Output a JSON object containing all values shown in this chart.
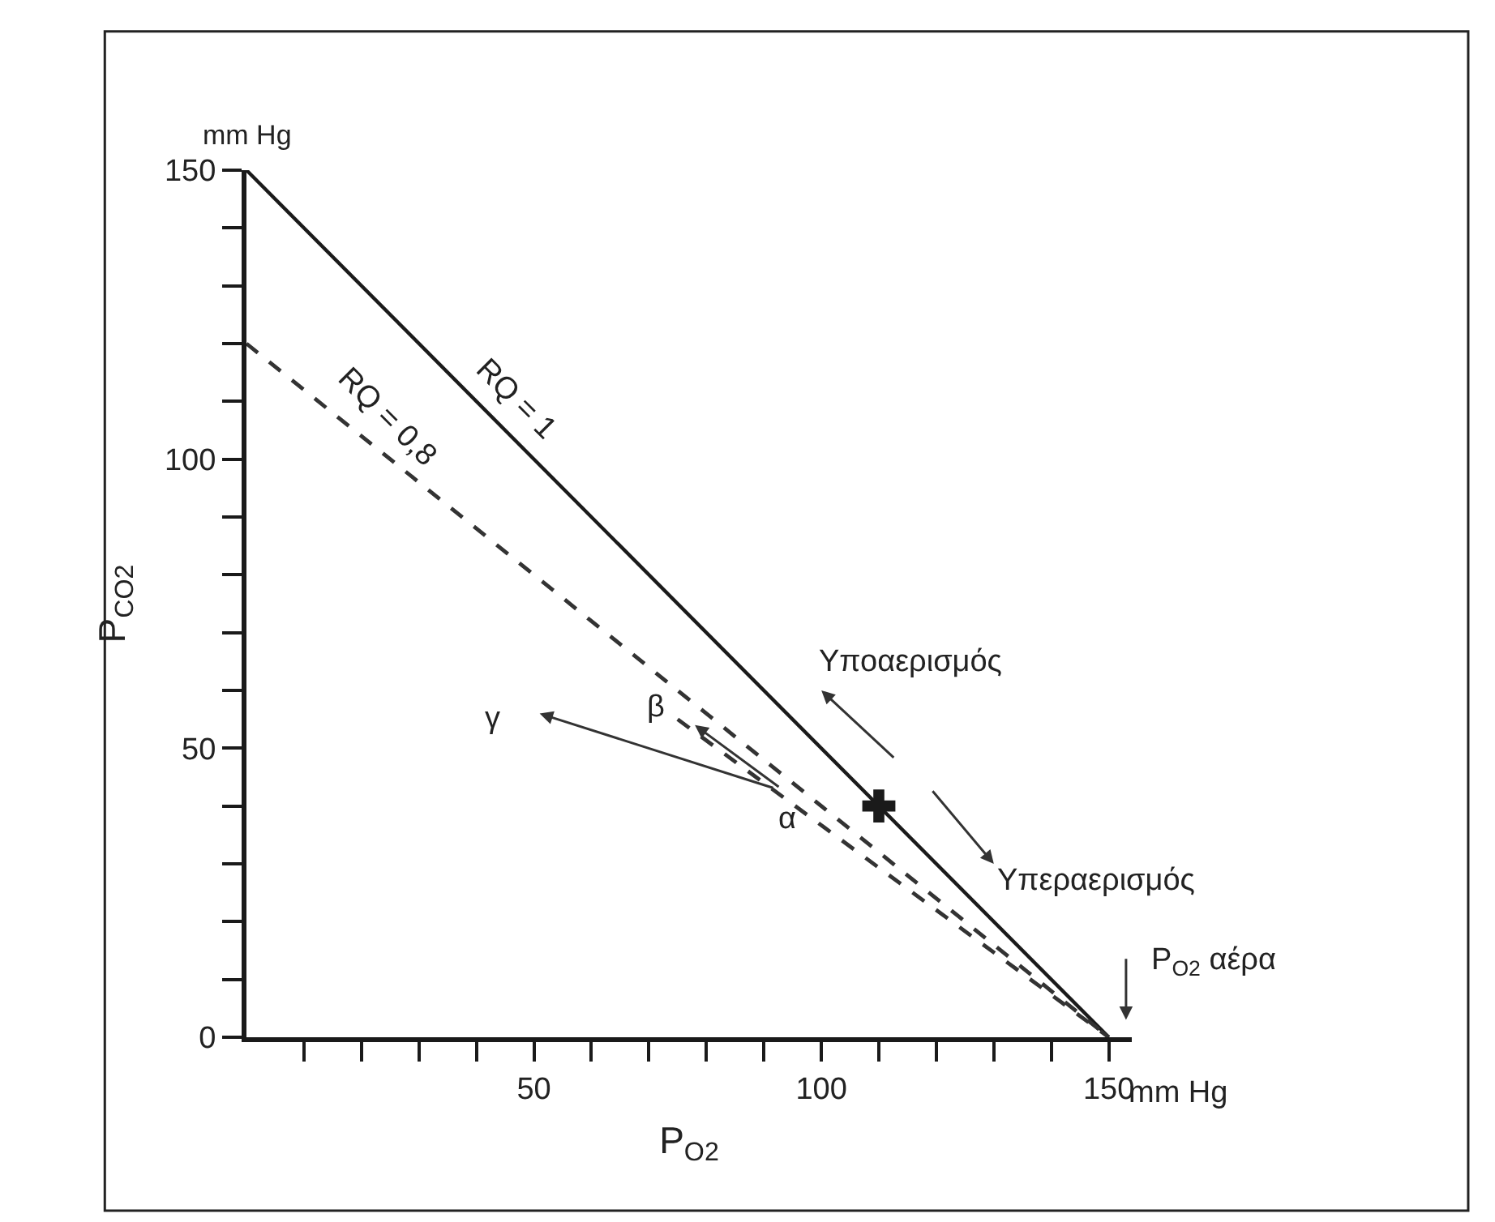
{
  "chart_data": {
    "type": "line",
    "xlabel": "P$_{O2}$",
    "ylabel": "P$_{CO2}$",
    "xlim": [
      0,
      154
    ],
    "ylim": [
      0,
      150
    ],
    "xticks": [
      {
        "value": 10,
        "label": null
      },
      {
        "value": 20,
        "label": null
      },
      {
        "value": 30,
        "label": null
      },
      {
        "value": 40,
        "label": null
      },
      50,
      {
        "value": 60,
        "label": null
      },
      {
        "value": 70,
        "label": null
      },
      {
        "value": 80,
        "label": null
      },
      {
        "value": 90,
        "label": null
      },
      100,
      {
        "value": 110,
        "label": null
      },
      {
        "value": 120,
        "label": null
      },
      {
        "value": 130,
        "label": null
      },
      {
        "value": 140,
        "label": null
      },
      150
    ],
    "yticks": [
      0,
      {
        "value": 10,
        "label": null
      },
      {
        "value": 20,
        "label": null
      },
      {
        "value": 30,
        "label": null
      },
      {
        "value": 40,
        "label": null
      },
      50,
      {
        "value": 60,
        "label": null
      },
      {
        "value": 70,
        "label": null
      },
      {
        "value": 80,
        "label": null
      },
      {
        "value": 90,
        "label": null
      },
      100,
      {
        "value": 110,
        "label": null
      },
      {
        "value": 120,
        "label": null
      },
      {
        "value": 130,
        "label": null
      },
      {
        "value": 140,
        "label": null
      },
      150
    ],
    "legend": false,
    "marker": "none",
    "series": [
      {
        "name": "RQ = 1",
        "color": "#1a1a1a",
        "x": [
          0,
          150
        ],
        "values": [
          150,
          0
        ],
        "line_style": "solid"
      },
      {
        "name": "RQ = 0,8",
        "color": "#333333",
        "x": [
          0,
          150
        ],
        "values": [
          120,
          0
        ],
        "line_style": "dashed"
      },
      {
        "color": "#333333",
        "x": [
          75,
          150
        ],
        "values": [
          55,
          0
        ],
        "line_style": "dashed"
      },
      {
        "type": "scatter",
        "color": "#1a1a1a",
        "x": [
          110
        ],
        "values": [
          40
        ],
        "marker": "cross"
      }
    ],
    "annotations": [
      "mm Hg",
      "mm Hg",
      {
        "text": "α",
        "x": 92,
        "y": 43
      },
      "β",
      "γ",
      "Υποαερισμός",
      "Υπεραερισμός",
      "P$_{O2}$ αέρα"
    ]
  }
}
